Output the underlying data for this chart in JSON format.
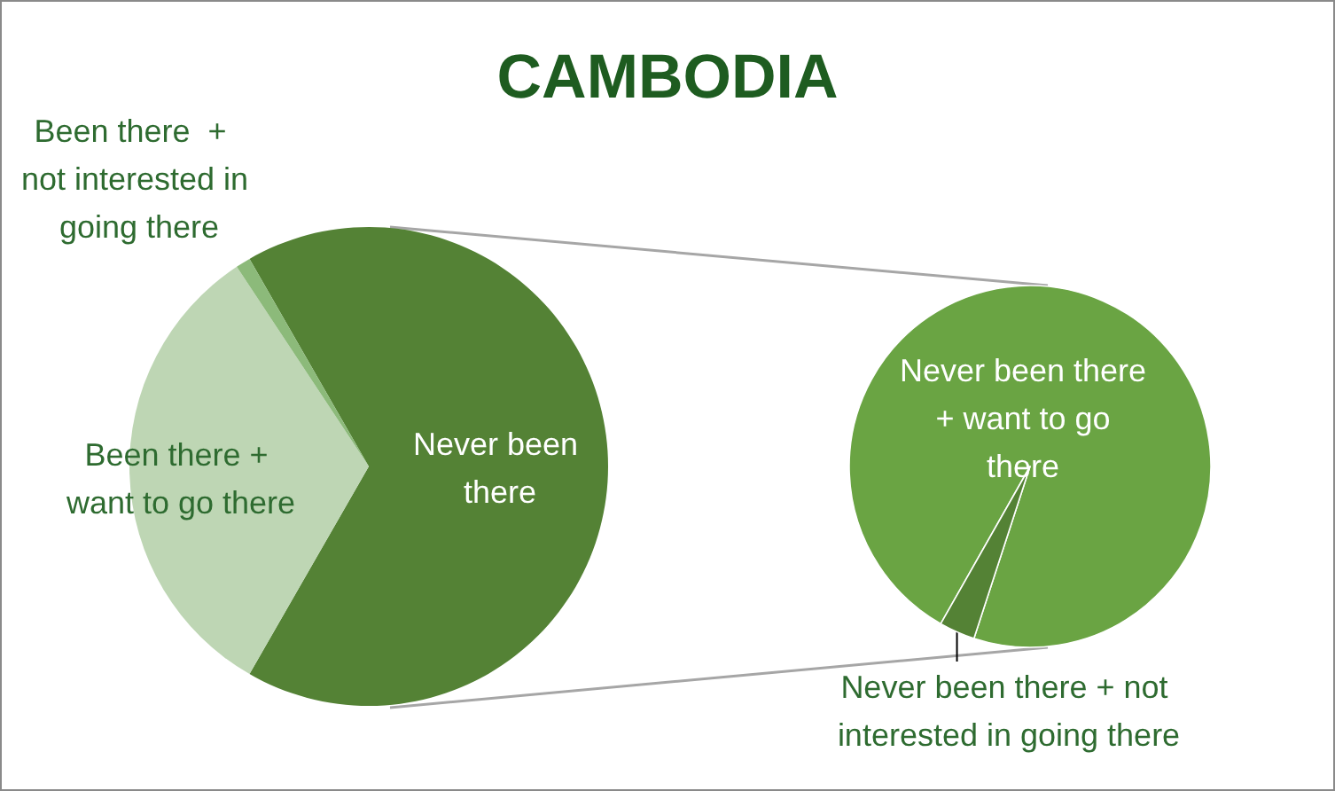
{
  "chart_data": [
    {
      "type": "pie",
      "title": "CAMBODIA",
      "categories": [
        "Never been there",
        "Been there + want to go there",
        "Been there  + not interested in going there"
      ],
      "values": [
        66.6,
        32.4,
        1.0
      ],
      "colors": [
        "#548235",
        "#bed6b4",
        "#8cba7a"
      ]
    },
    {
      "type": "pie",
      "categories": [
        "Never been there + want to go there",
        "Never been there + not interested in going there"
      ],
      "values": [
        96.8,
        3.2
      ],
      "colors": [
        "#6aa443",
        "#548235"
      ]
    }
  ]
}
